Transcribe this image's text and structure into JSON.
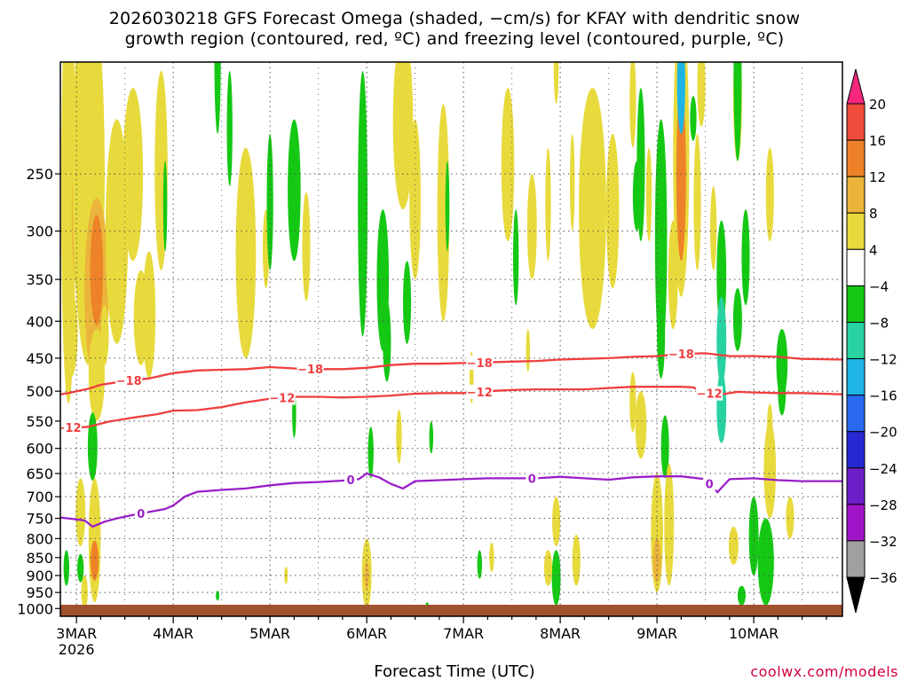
{
  "title_line1": "2026030218 GFS Forecast Omega (shaded, −cm/s) for KFAY with dendritic snow",
  "title_line2": "growth region (contoured, red, ºC) and freezing level (contoured, purple, ºC)",
  "credit": "coolwx.com/models",
  "chart_data": {
    "type": "heatmap",
    "xlabel": "Forecast Time (UTC)",
    "ylabel": "",
    "x_range_hours": [
      -4,
      190
    ],
    "y_range_hpa": [
      175,
      1025
    ],
    "y_axis": "log-pressure, reversed",
    "grid": true,
    "x_ticks": [
      {
        "hour": 0,
        "label": "3MAR",
        "sub": "2026"
      },
      {
        "hour": 24,
        "label": "4MAR"
      },
      {
        "hour": 48,
        "label": "5MAR"
      },
      {
        "hour": 72,
        "label": "6MAR"
      },
      {
        "hour": 96,
        "label": "7MAR"
      },
      {
        "hour": 120,
        "label": "8MAR"
      },
      {
        "hour": 144,
        "label": "9MAR"
      },
      {
        "hour": 168,
        "label": "10MAR"
      }
    ],
    "y_ticks": [
      250,
      300,
      350,
      400,
      450,
      500,
      550,
      600,
      650,
      700,
      750,
      800,
      850,
      900,
      950,
      1000
    ],
    "colorbar": {
      "labels": [
        "20",
        "16",
        "12",
        "8",
        "4",
        "−4",
        "−8",
        "−12",
        "−16",
        "−20",
        "−24",
        "−28",
        "−32",
        "−36"
      ],
      "colors": [
        "#f5267e",
        "#f04c3c",
        "#ee8228",
        "#ebb43a",
        "#e8da3c",
        "#ffffff",
        "#14c814",
        "#28d2a0",
        "#1eb4e6",
        "#2869f0",
        "#2828d2",
        "#6e1ec8",
        "#a014c8",
        "#a0a0a0",
        "#000000"
      ]
    },
    "contour_minus18": {
      "color": "#ef3e3e",
      "label": "−18",
      "labels_at_hours": [
        13,
        58,
        100,
        150
      ],
      "points": [
        [
          -4,
          505
        ],
        [
          -2,
          503
        ],
        [
          3,
          496
        ],
        [
          6,
          490
        ],
        [
          12,
          484
        ],
        [
          18,
          480
        ],
        [
          24,
          472
        ],
        [
          30,
          468
        ],
        [
          36,
          467
        ],
        [
          42,
          466
        ],
        [
          48,
          463
        ],
        [
          54,
          465
        ],
        [
          60,
          466
        ],
        [
          66,
          466
        ],
        [
          72,
          464
        ],
        [
          78,
          460
        ],
        [
          84,
          458
        ],
        [
          90,
          458
        ],
        [
          96,
          457
        ],
        [
          102,
          456
        ],
        [
          108,
          455
        ],
        [
          114,
          454
        ],
        [
          120,
          452
        ],
        [
          126,
          451
        ],
        [
          132,
          450
        ],
        [
          138,
          448
        ],
        [
          144,
          447
        ],
        [
          150,
          444
        ],
        [
          156,
          443
        ],
        [
          162,
          447
        ],
        [
          168,
          447
        ],
        [
          174,
          448
        ],
        [
          180,
          451
        ],
        [
          190,
          452
        ]
      ]
    },
    "contour_minus12": {
      "color": "#ef3e3e",
      "label": "−12",
      "labels_at_hours": [
        -2,
        51,
        100,
        157
      ],
      "points": [
        [
          -4,
          560
        ],
        [
          -1,
          562
        ],
        [
          3,
          560
        ],
        [
          8,
          551
        ],
        [
          14,
          544
        ],
        [
          20,
          538
        ],
        [
          24,
          532
        ],
        [
          30,
          531
        ],
        [
          36,
          526
        ],
        [
          42,
          518
        ],
        [
          48,
          512
        ],
        [
          54,
          509
        ],
        [
          60,
          509
        ],
        [
          66,
          510
        ],
        [
          72,
          509
        ],
        [
          78,
          507
        ],
        [
          84,
          504
        ],
        [
          90,
          503
        ],
        [
          96,
          503
        ],
        [
          102,
          500
        ],
        [
          108,
          498
        ],
        [
          114,
          497
        ],
        [
          120,
          497
        ],
        [
          126,
          497
        ],
        [
          132,
          495
        ],
        [
          138,
          493
        ],
        [
          144,
          493
        ],
        [
          150,
          493
        ],
        [
          153,
          494
        ],
        [
          156,
          503
        ],
        [
          160,
          505
        ],
        [
          164,
          501
        ],
        [
          168,
          502
        ],
        [
          174,
          503
        ],
        [
          180,
          503
        ],
        [
          190,
          505
        ]
      ]
    },
    "contour_zero": {
      "color": "#9a1ec8",
      "label": "0",
      "labels_at_hours": [
        16,
        68,
        113,
        157
      ],
      "points": [
        [
          -4,
          748
        ],
        [
          2,
          755
        ],
        [
          4,
          770
        ],
        [
          7,
          758
        ],
        [
          10,
          750
        ],
        [
          14,
          742
        ],
        [
          18,
          735
        ],
        [
          22,
          728
        ],
        [
          24,
          720
        ],
        [
          27,
          699
        ],
        [
          30,
          689
        ],
        [
          36,
          685
        ],
        [
          42,
          682
        ],
        [
          48,
          675
        ],
        [
          54,
          670
        ],
        [
          60,
          668
        ],
        [
          66,
          665
        ],
        [
          70,
          662
        ],
        [
          72,
          650
        ],
        [
          75,
          658
        ],
        [
          78,
          672
        ],
        [
          81,
          682
        ],
        [
          84,
          666
        ],
        [
          90,
          664
        ],
        [
          96,
          662
        ],
        [
          102,
          660
        ],
        [
          108,
          660
        ],
        [
          114,
          660
        ],
        [
          120,
          657
        ],
        [
          126,
          660
        ],
        [
          132,
          663
        ],
        [
          138,
          658
        ],
        [
          144,
          656
        ],
        [
          150,
          656
        ],
        [
          156,
          662
        ],
        [
          159,
          690
        ],
        [
          162,
          662
        ],
        [
          168,
          660
        ],
        [
          174,
          664
        ],
        [
          180,
          666
        ],
        [
          190,
          666
        ]
      ]
    },
    "omega_blobs": [
      {
        "h": -2,
        "p": 300,
        "rx": 1.8,
        "ry": 220,
        "v": 6
      },
      {
        "h": -1.5,
        "p": 420,
        "rx": 1.8,
        "ry": 60,
        "v": 5
      },
      {
        "h": 0,
        "p": 290,
        "rx": 1.2,
        "ry": 60,
        "v": 10
      },
      {
        "h": 3,
        "p": 270,
        "rx": 4,
        "ry": 190,
        "v": 6
      },
      {
        "h": 5,
        "p": 380,
        "rx": 3,
        "ry": 110,
        "v": 9
      },
      {
        "h": 5,
        "p": 480,
        "rx": 2,
        "ry": 70,
        "v": 5
      },
      {
        "h": 5,
        "p": 345,
        "rx": 1.6,
        "ry": 60,
        "v": 12
      },
      {
        "h": 4,
        "p": 600,
        "rx": 1.2,
        "ry": 65,
        "v": -6
      },
      {
        "h": 4.5,
        "p": 820,
        "rx": 1.5,
        "ry": 160,
        "v": 6
      },
      {
        "h": 4.5,
        "p": 860,
        "rx": 1.0,
        "ry": 55,
        "v": 14
      },
      {
        "h": 1,
        "p": 740,
        "rx": 1.2,
        "ry": 80,
        "v": 6
      },
      {
        "h": 1,
        "p": 880,
        "rx": 0.8,
        "ry": 40,
        "v": -6
      },
      {
        "h": -2.5,
        "p": 880,
        "rx": 0.7,
        "ry": 50,
        "v": -6
      },
      {
        "h": 7,
        "p": 420,
        "rx": 1,
        "ry": 40,
        "v": 4.5
      },
      {
        "h": 10,
        "p": 320,
        "rx": 2.8,
        "ry": 110,
        "v": 5
      },
      {
        "h": 14,
        "p": 260,
        "rx": 2.5,
        "ry": 70,
        "v": 5
      },
      {
        "h": 16,
        "p": 400,
        "rx": 1.8,
        "ry": 60,
        "v": 4.5
      },
      {
        "h": 18,
        "p": 400,
        "rx": 1.6,
        "ry": 80,
        "v": 4.5
      },
      {
        "h": 21,
        "p": 260,
        "rx": 1.6,
        "ry": 80,
        "v": 4.5
      },
      {
        "h": 35,
        "p": 170,
        "rx": 0.8,
        "ry": 50,
        "v": -6
      },
      {
        "h": 38,
        "p": 220,
        "rx": 0.7,
        "ry": 40,
        "v": -6
      },
      {
        "h": 42,
        "p": 340,
        "rx": 2.5,
        "ry": 110,
        "v": 4.5
      },
      {
        "h": 47,
        "p": 320,
        "rx": 0.8,
        "ry": 40,
        "v": 4.5
      },
      {
        "h": 48,
        "p": 280,
        "rx": 0.8,
        "ry": 60,
        "v": -6
      },
      {
        "h": 54,
        "p": 270,
        "rx": 1.6,
        "ry": 60,
        "v": -6
      },
      {
        "h": 57,
        "p": 320,
        "rx": 1.0,
        "ry": 55,
        "v": 4.5
      },
      {
        "h": 54,
        "p": 540,
        "rx": 0.5,
        "ry": 40,
        "v": -6
      },
      {
        "h": 81,
        "p": 220,
        "rx": 2.5,
        "ry": 60,
        "v": 5
      },
      {
        "h": 84,
        "p": 280,
        "rx": 1.4,
        "ry": 70,
        "v": 4.5
      },
      {
        "h": 91,
        "p": 300,
        "rx": 1.5,
        "ry": 100,
        "v": 4.5
      },
      {
        "h": 71,
        "p": 300,
        "rx": 1.2,
        "ry": 120,
        "v": -6
      },
      {
        "h": 76,
        "p": 360,
        "rx": 1.5,
        "ry": 80,
        "v": -6
      },
      {
        "h": 77,
        "p": 430,
        "rx": 1.0,
        "ry": 55,
        "v": -7
      },
      {
        "h": 82,
        "p": 380,
        "rx": 1.0,
        "ry": 50,
        "v": -6
      },
      {
        "h": 73,
        "p": 610,
        "rx": 0.7,
        "ry": 50,
        "v": -6
      },
      {
        "h": 72,
        "p": 900,
        "rx": 1.2,
        "ry": 100,
        "v": 6
      },
      {
        "h": 72,
        "p": 900,
        "rx": 0.6,
        "ry": 40,
        "v": 10
      },
      {
        "h": 80,
        "p": 580,
        "rx": 0.7,
        "ry": 50,
        "v": 4.5
      },
      {
        "h": 87,
        "p": 1000,
        "rx": 0.5,
        "ry": 20,
        "v": -6
      },
      {
        "h": 107,
        "p": 250,
        "rx": 1.6,
        "ry": 60,
        "v": 4.5
      },
      {
        "h": 109,
        "p": 330,
        "rx": 0.7,
        "ry": 50,
        "v": -6
      },
      {
        "h": 113,
        "p": 300,
        "rx": 1.2,
        "ry": 50,
        "v": 4.5
      },
      {
        "h": 119,
        "p": 180,
        "rx": 0.6,
        "ry": 20,
        "v": 4.5
      },
      {
        "h": 117,
        "p": 280,
        "rx": 0.7,
        "ry": 50,
        "v": 4.5
      },
      {
        "h": 123,
        "p": 260,
        "rx": 0.6,
        "ry": 40,
        "v": 4.5
      },
      {
        "h": 128,
        "p": 300,
        "rx": 3.4,
        "ry": 110,
        "v": 5
      },
      {
        "h": 133,
        "p": 290,
        "rx": 1.6,
        "ry": 70,
        "v": 4.5
      },
      {
        "h": 138,
        "p": 200,
        "rx": 0.8,
        "ry": 30,
        "v": 4.5
      },
      {
        "h": 138,
        "p": 520,
        "rx": 0.8,
        "ry": 50,
        "v": 4.5
      },
      {
        "h": 140,
        "p": 250,
        "rx": 1.0,
        "ry": 60,
        "v": -6
      },
      {
        "h": 139,
        "p": 270,
        "rx": 1.0,
        "ry": 30,
        "v": -6
      },
      {
        "h": 142,
        "p": 270,
        "rx": 0.7,
        "ry": 40,
        "v": 4.5
      },
      {
        "h": 145,
        "p": 330,
        "rx": 1.5,
        "ry": 120,
        "v": -6
      },
      {
        "h": 145,
        "p": 420,
        "rx": 1.0,
        "ry": 60,
        "v": -6
      },
      {
        "h": 148,
        "p": 350,
        "rx": 1.2,
        "ry": 60,
        "v": 4.5
      },
      {
        "h": 150,
        "p": 200,
        "rx": 1.0,
        "ry": 40,
        "v": -6
      },
      {
        "h": 150,
        "p": 260,
        "rx": 2.0,
        "ry": 110,
        "v": 6
      },
      {
        "h": 150,
        "p": 260,
        "rx": 1.2,
        "ry": 70,
        "v": 12
      },
      {
        "h": 150,
        "p": 190,
        "rx": 1.0,
        "ry": 30,
        "v": -14
      },
      {
        "h": 154,
        "p": 280,
        "rx": 0.9,
        "ry": 60,
        "v": 4.5
      },
      {
        "h": 158,
        "p": 300,
        "rx": 0.8,
        "ry": 40,
        "v": 4.5
      },
      {
        "h": 160,
        "p": 350,
        "rx": 1.2,
        "ry": 60,
        "v": -6
      },
      {
        "h": 160,
        "p": 430,
        "rx": 1.2,
        "ry": 60,
        "v": -9
      },
      {
        "h": 160,
        "p": 530,
        "rx": 1.2,
        "ry": 60,
        "v": -8
      },
      {
        "h": 164,
        "p": 200,
        "rx": 1.1,
        "ry": 40,
        "v": 4.5
      },
      {
        "h": 164,
        "p": 400,
        "rx": 1.1,
        "ry": 40,
        "v": -6
      },
      {
        "h": 166,
        "p": 330,
        "rx": 1.0,
        "ry": 50,
        "v": -6
      },
      {
        "h": 172,
        "p": 270,
        "rx": 1.0,
        "ry": 40,
        "v": 4.5
      },
      {
        "h": 172,
        "p": 560,
        "rx": 0.7,
        "ry": 40,
        "v": 4.5
      },
      {
        "h": 175,
        "p": 460,
        "rx": 1.4,
        "ry": 50,
        "v": -6
      },
      {
        "h": 140,
        "p": 560,
        "rx": 1.4,
        "ry": 60,
        "v": 4.5
      },
      {
        "h": 144,
        "p": 800,
        "rx": 1.5,
        "ry": 150,
        "v": 5
      },
      {
        "h": 144,
        "p": 860,
        "rx": 1.0,
        "ry": 60,
        "v": 10
      },
      {
        "h": 146,
        "p": 600,
        "rx": 1.0,
        "ry": 60,
        "v": -6
      },
      {
        "h": 147,
        "p": 780,
        "rx": 1.2,
        "ry": 150,
        "v": 5
      },
      {
        "h": 168,
        "p": 800,
        "rx": 1.2,
        "ry": 100,
        "v": -6
      },
      {
        "h": 171,
        "p": 870,
        "rx": 2.0,
        "ry": 120,
        "v": -6
      },
      {
        "h": 172,
        "p": 650,
        "rx": 1.5,
        "ry": 100,
        "v": 4.5
      },
      {
        "h": 175,
        "p": 500,
        "rx": 1.0,
        "ry": 40,
        "v": -6
      },
      {
        "h": 177,
        "p": 750,
        "rx": 1.0,
        "ry": 50,
        "v": 4.5
      },
      {
        "h": 163,
        "p": 820,
        "rx": 1.2,
        "ry": 50,
        "v": 4.5
      },
      {
        "h": 165,
        "p": 960,
        "rx": 1.0,
        "ry": 30,
        "v": -6
      },
      {
        "h": 119,
        "p": 760,
        "rx": 1.0,
        "ry": 60,
        "v": 4.5
      },
      {
        "h": 119,
        "p": 910,
        "rx": 1.1,
        "ry": 80,
        "v": -6
      },
      {
        "h": 124,
        "p": 860,
        "rx": 1.0,
        "ry": 70,
        "v": 4.5
      },
      {
        "h": 117,
        "p": 880,
        "rx": 1.0,
        "ry": 50,
        "v": 4.5
      },
      {
        "h": 103,
        "p": 850,
        "rx": 0.6,
        "ry": 40,
        "v": 4.5
      },
      {
        "h": 98,
        "p": 480,
        "rx": 0.5,
        "ry": 40,
        "v": 4.5
      },
      {
        "h": 112,
        "p": 440,
        "rx": 0.5,
        "ry": 30,
        "v": 4.5
      },
      {
        "h": 92,
        "p": 280,
        "rx": 0.5,
        "ry": 40,
        "v": -6
      },
      {
        "h": 100,
        "p": 870,
        "rx": 0.6,
        "ry": 40,
        "v": -6
      },
      {
        "h": 88,
        "p": 580,
        "rx": 0.5,
        "ry": 30,
        "v": -6
      },
      {
        "h": 22,
        "p": 280,
        "rx": 0.5,
        "ry": 40,
        "v": -6
      },
      {
        "h": 2,
        "p": 950,
        "rx": 0.8,
        "ry": 50,
        "v": 4.5
      },
      {
        "h": 52,
        "p": 900,
        "rx": 0.4,
        "ry": 25,
        "v": 4.5
      },
      {
        "h": 35,
        "p": 960,
        "rx": 0.3,
        "ry": 15,
        "v": -6
      },
      {
        "h": 164,
        "p": 160,
        "rx": 1.0,
        "ry": 80,
        "v": -6
      },
      {
        "h": 155,
        "p": 190,
        "rx": 1.0,
        "ry": 25,
        "v": 4.5
      },
      {
        "h": 153,
        "p": 210,
        "rx": 0.8,
        "ry": 15,
        "v": -6
      }
    ]
  }
}
